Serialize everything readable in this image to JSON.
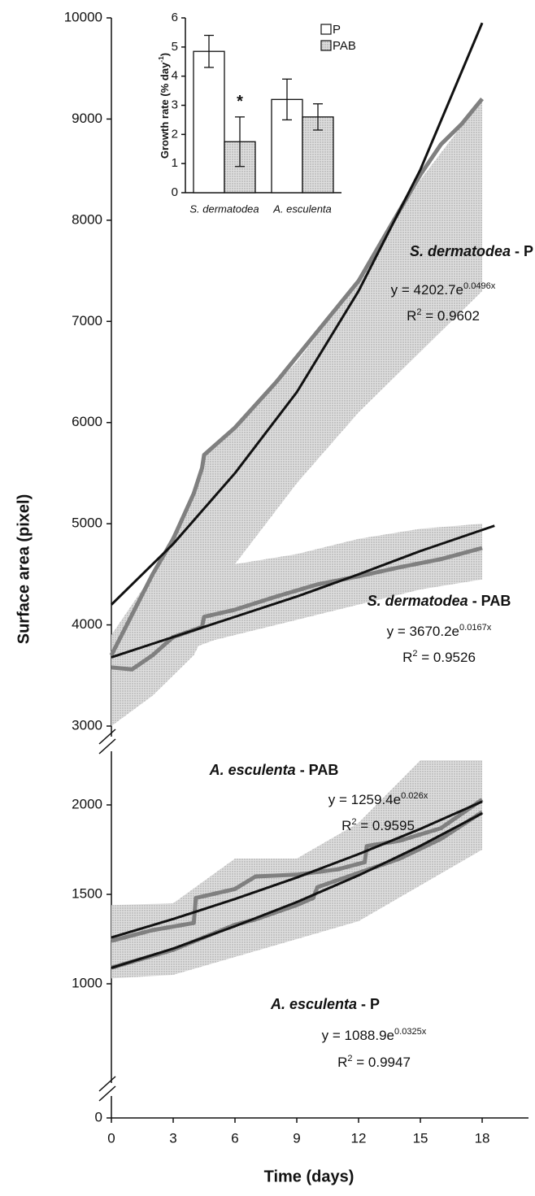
{
  "chart_data": [
    {
      "type": "line",
      "ylabel": "Surface area (pixel)",
      "ylim": [
        3000,
        10000
      ],
      "yticks": [
        3000,
        4000,
        5000,
        6000,
        7000,
        8000,
        9000,
        10000
      ],
      "bands": [
        {
          "color": "#d2d2d2",
          "x": [
            0,
            2,
            4,
            4.5,
            6,
            9,
            12,
            15,
            18
          ],
          "upper": [
            3900,
            4500,
            5300,
            5700,
            5950,
            6600,
            7400,
            8400,
            9200
          ],
          "lower": [
            3000,
            3300,
            3700,
            3900,
            4600,
            5400,
            6100,
            6700,
            7300
          ]
        },
        {
          "color": "#d2d2d2",
          "x": [
            0,
            3,
            5,
            6,
            9,
            12,
            15,
            18
          ],
          "upper": [
            3800,
            4000,
            4300,
            4600,
            4700,
            4850,
            4950,
            5000
          ],
          "lower": [
            3400,
            3700,
            3850,
            3900,
            4050,
            4200,
            4350,
            4450
          ]
        }
      ],
      "series": [
        {
          "kind": "data",
          "color": "#808080",
          "x": [
            0,
            1,
            2,
            3,
            4,
            4.4,
            4.5,
            6,
            8,
            10,
            12,
            14,
            15,
            16,
            17,
            18
          ],
          "values": [
            3700,
            4100,
            4500,
            4850,
            5300,
            5550,
            5680,
            5950,
            6400,
            6900,
            7400,
            8100,
            8450,
            8750,
            8950,
            9200
          ]
        },
        {
          "kind": "data",
          "color": "#808080",
          "x": [
            0,
            1,
            2,
            3,
            4,
            4.4,
            4.5,
            6,
            8,
            10,
            12,
            14,
            16,
            18
          ],
          "values": [
            3580,
            3560,
            3700,
            3880,
            3950,
            3980,
            4080,
            4150,
            4280,
            4400,
            4480,
            4570,
            4650,
            4760
          ]
        },
        {
          "kind": "fit",
          "color": "#111111",
          "x": [
            0,
            3,
            6,
            9,
            12,
            15,
            18
          ],
          "values": [
            4200,
            4800,
            5500,
            6300,
            7300,
            8500,
            9950
          ]
        },
        {
          "kind": "fit",
          "color": "#111111",
          "x": [
            0,
            3,
            6,
            9,
            12,
            15,
            18.6
          ],
          "values": [
            3680,
            3880,
            4080,
            4280,
            4500,
            4730,
            4980
          ]
        }
      ],
      "annotations": [
        {
          "title": [
            "S. dermatodea",
            " - P"
          ],
          "equation": [
            "y = 4202.7e",
            "0.0496x"
          ],
          "r2": [
            "R",
            "2",
            " = 0.9602"
          ]
        },
        {
          "title": [
            "S. dermatodea",
            " - PAB"
          ],
          "equation": [
            "y = 3670.2e",
            "0.0167x"
          ],
          "r2": [
            "R",
            "2",
            " = 0.9526"
          ]
        }
      ]
    },
    {
      "type": "line",
      "ylim": [
        700,
        2250
      ],
      "yticks": [
        1000,
        1500,
        2000
      ],
      "bands": [
        {
          "color": "#d2d2d2",
          "x": [
            0,
            3,
            6,
            9,
            12,
            15,
            18
          ],
          "upper": [
            1440,
            1450,
            1700,
            1700,
            1900,
            2250,
            2250
          ],
          "lower": [
            1030,
            1050,
            1150,
            1250,
            1350,
            1550,
            1750
          ]
        }
      ],
      "series": [
        {
          "kind": "data",
          "color": "#808080",
          "x": [
            0,
            2,
            3,
            4,
            4.1,
            6,
            7,
            9,
            11,
            12.3,
            12.4,
            14,
            16,
            18
          ],
          "values": [
            1240,
            1300,
            1320,
            1340,
            1480,
            1530,
            1600,
            1610,
            1640,
            1680,
            1770,
            1800,
            1870,
            2030
          ]
        },
        {
          "kind": "data",
          "color": "#808080",
          "x": [
            0,
            3,
            6,
            7,
            9,
            9.8,
            10,
            12,
            14,
            16,
            18
          ],
          "values": [
            1090,
            1190,
            1330,
            1360,
            1440,
            1480,
            1540,
            1620,
            1700,
            1810,
            1960
          ]
        },
        {
          "kind": "fit",
          "color": "#111111",
          "x": [
            0,
            3,
            6,
            9,
            12,
            15,
            18
          ],
          "values": [
            1259,
            1362,
            1474,
            1594,
            1725,
            1866,
            2019
          ]
        },
        {
          "kind": "fit",
          "color": "#111111",
          "x": [
            0,
            3,
            6,
            9,
            12,
            15,
            18
          ],
          "values": [
            1089,
            1197,
            1322,
            1457,
            1606,
            1771,
            1953
          ]
        }
      ],
      "annotations": [
        {
          "title": [
            "A. esculenta",
            " - PAB"
          ],
          "equation": [
            "y = 1259.4e",
            "0.026x"
          ],
          "r2": [
            "R",
            "2",
            " = 0.9595"
          ]
        },
        {
          "title": [
            "A. esculenta",
            " - P"
          ],
          "equation": [
            "y = 1088.9e",
            "0.0325x"
          ],
          "r2": [
            "R",
            "2",
            " = 0.9947"
          ]
        }
      ]
    },
    {
      "type": "axis",
      "ylim": [
        0,
        100
      ],
      "yticks": [
        0
      ],
      "xlim": [
        0,
        20
      ],
      "xticks": [
        0,
        3,
        6,
        9,
        12,
        15,
        18
      ],
      "xlabel": "Time (days)"
    },
    {
      "type": "bar",
      "ylabel": [
        "Growth rate (% day",
        "-1",
        ")"
      ],
      "categories": [
        "S. dermatodea",
        "A. esculenta"
      ],
      "ylim": [
        0,
        6
      ],
      "yticks": [
        0,
        1,
        2,
        3,
        4,
        5,
        6
      ],
      "series": [
        {
          "name": "P",
          "color": "#ffffff",
          "values": [
            4.85,
            3.2
          ],
          "errors": [
            0.55,
            0.7
          ]
        },
        {
          "name": "PAB",
          "color": "#cfcfcf",
          "values": [
            1.75,
            2.6
          ],
          "errors": [
            0.85,
            0.45
          ]
        }
      ],
      "annotations": [
        {
          "text": "*",
          "category": 0,
          "series": 1
        }
      ]
    }
  ]
}
